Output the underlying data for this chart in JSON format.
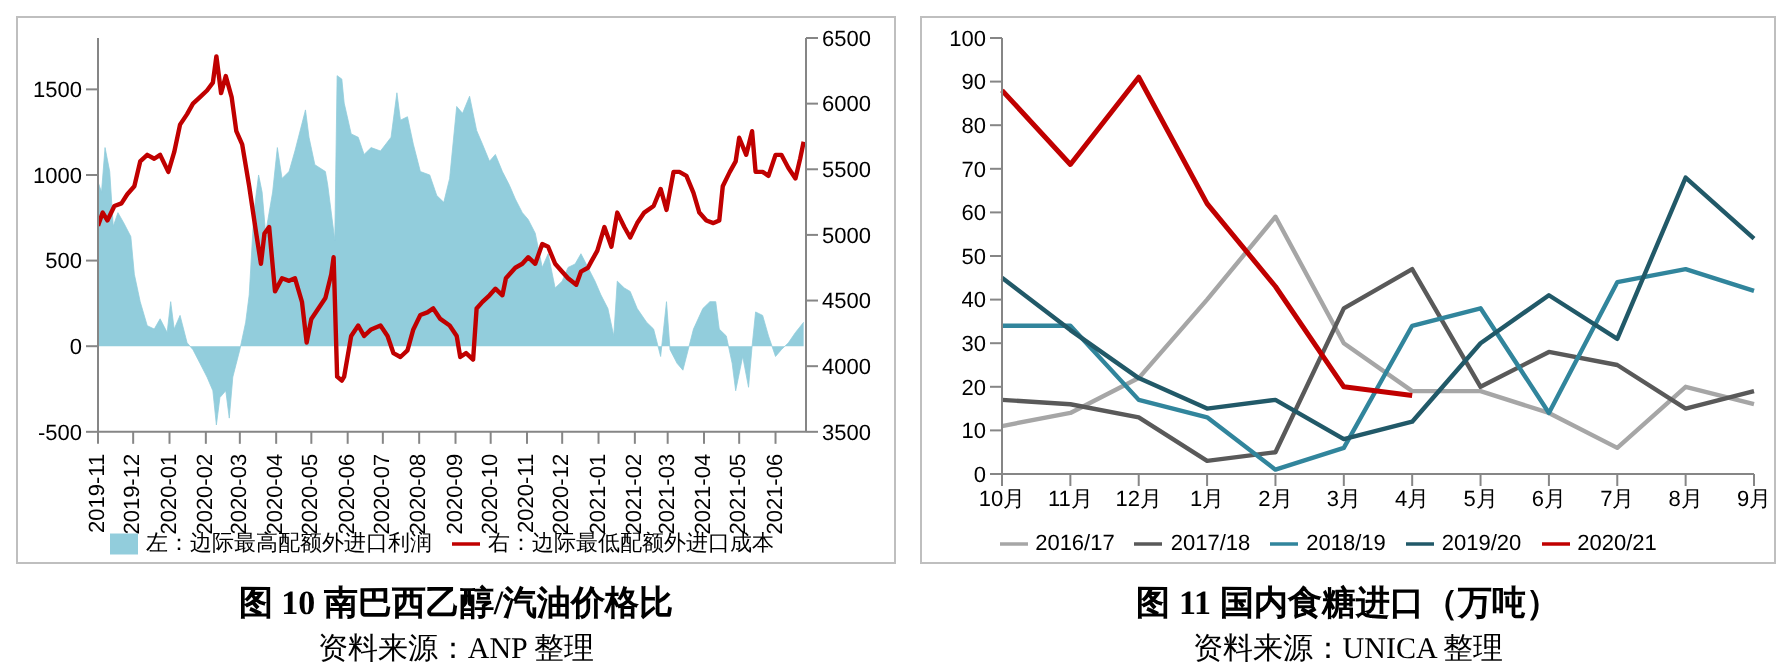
{
  "chart_data": [
    {
      "type": "area",
      "title": "图 10 南巴西乙醇/汽油价格比",
      "annotations": [
        "资料来源：ANP 整理"
      ],
      "xlim": [
        "2019-11-01",
        "2021-06-27"
      ],
      "xticks": [
        "2019-11",
        "2019-12",
        "2020-01",
        "2020-02",
        "2020-03",
        "2020-04",
        "2020-05",
        "2020-06",
        "2020-07",
        "2020-08",
        "2020-09",
        "2020-10",
        "2020-11",
        "2020-12",
        "2021-01",
        "2021-02",
        "2021-03",
        "2021-04",
        "2021-05",
        "2021-06"
      ],
      "ylim": [
        -500,
        1800
      ],
      "yticks": [
        -500,
        0,
        500,
        1000,
        1500
      ],
      "y2lim": [
        3500,
        6500
      ],
      "y2ticks": [
        3500,
        4000,
        4500,
        5000,
        5500,
        6000,
        6500
      ],
      "legend": "bottom",
      "series": [
        {
          "name": "左：边际最高配额外进口利润",
          "color": "#92cddc",
          "x": [
            "2019-11-01",
            "2019-11-04",
            "2019-11-07",
            "2019-11-11",
            "2019-11-14",
            "2019-11-18",
            "2019-11-23",
            "2019-11-29",
            "2019-12-02",
            "2019-12-07",
            "2019-12-13",
            "2019-12-19",
            "2019-12-24",
            "2019-12-30",
            "2020-01-02",
            "2020-01-05",
            "2020-01-10",
            "2020-01-16",
            "2020-01-21",
            "2020-01-27",
            "2020-02-02",
            "2020-02-07",
            "2020-02-10",
            "2020-02-13",
            "2020-02-18",
            "2020-02-21",
            "2020-02-24",
            "2020-03-01",
            "2020-03-06",
            "2020-03-09",
            "2020-03-13",
            "2020-03-17",
            "2020-03-20",
            "2020-03-23",
            "2020-03-29",
            "2020-04-02",
            "2020-04-06",
            "2020-04-12",
            "2020-04-17",
            "2020-04-26",
            "2020-04-29",
            "2020-05-04",
            "2020-05-13",
            "2020-05-15",
            "2020-05-21",
            "2020-05-23",
            "2020-05-27",
            "2020-05-29",
            "2020-06-04",
            "2020-06-10",
            "2020-06-15",
            "2020-06-21",
            "2020-06-29",
            "2020-07-08",
            "2020-07-13",
            "2020-07-16",
            "2020-07-22",
            "2020-07-27",
            "2020-08-02",
            "2020-08-10",
            "2020-08-16",
            "2020-08-22",
            "2020-08-27",
            "2020-09-02",
            "2020-09-07",
            "2020-09-13",
            "2020-09-19",
            "2020-09-24",
            "2020-09-30",
            "2020-10-05",
            "2020-10-11",
            "2020-10-17",
            "2020-10-22",
            "2020-10-28",
            "2020-11-02",
            "2020-11-08",
            "2020-11-14",
            "2020-11-19",
            "2020-11-25",
            "2020-12-01",
            "2020-12-06",
            "2020-12-12",
            "2020-12-17",
            "2020-12-23",
            "2020-12-29",
            "2021-01-03",
            "2021-01-09",
            "2021-01-14",
            "2021-01-17",
            "2021-01-23",
            "2021-01-28",
            "2021-02-03",
            "2021-02-11",
            "2021-02-17",
            "2021-02-23",
            "2021-02-28",
            "2021-03-03",
            "2021-03-09",
            "2021-03-14",
            "2021-03-23",
            "2021-03-31",
            "2021-04-06",
            "2021-04-11",
            "2021-04-14",
            "2021-04-20",
            "2021-04-25",
            "2021-04-28",
            "2021-05-04",
            "2021-05-09",
            "2021-05-12",
            "2021-05-15",
            "2021-05-21",
            "2021-05-26",
            "2021-06-01",
            "2021-06-06",
            "2021-06-12",
            "2021-06-18",
            "2021-06-25"
          ],
          "values": [
            960,
            900,
            1160,
            1020,
            700,
            780,
            720,
            640,
            420,
            260,
            120,
            100,
            160,
            80,
            260,
            100,
            180,
            20,
            -20,
            -100,
            -180,
            -260,
            -460,
            -300,
            -260,
            -420,
            -180,
            -20,
            140,
            300,
            780,
            1000,
            900,
            660,
            900,
            1160,
            980,
            1020,
            1140,
            1380,
            1220,
            1060,
            1020,
            940,
            620,
            1580,
            1560,
            1420,
            1240,
            1220,
            1120,
            1160,
            1140,
            1220,
            1480,
            1320,
            1340,
            1180,
            1020,
            1000,
            880,
            840,
            980,
            1400,
            1360,
            1460,
            1260,
            1180,
            1080,
            1120,
            1020,
            940,
            860,
            780,
            740,
            660,
            460,
            540,
            340,
            380,
            460,
            480,
            540,
            460,
            380,
            300,
            220,
            60,
            380,
            340,
            320,
            220,
            140,
            100,
            -60,
            260,
            -20,
            -100,
            -140,
            100,
            220,
            260,
            260,
            100,
            60,
            -100,
            -260,
            -60,
            -240,
            0,
            200,
            180,
            60,
            -60,
            -20,
            20,
            80,
            140
          ]
        },
        {
          "name": "右：边际最低配额外进口成本",
          "type": "line",
          "axis": "y2",
          "color": "#c00000",
          "x": [
            "2019-11-01",
            "2019-11-05",
            "2019-11-09",
            "2019-11-15",
            "2019-11-21",
            "2019-11-26",
            "2019-12-02",
            "2019-12-07",
            "2019-12-13",
            "2019-12-19",
            "2019-12-24",
            "2019-12-31",
            "2020-01-05",
            "2020-01-10",
            "2020-01-16",
            "2020-01-21",
            "2020-01-27",
            "2020-02-02",
            "2020-02-07",
            "2020-02-10",
            "2020-02-14",
            "2020-02-18",
            "2020-02-23",
            "2020-02-27",
            "2020-03-03",
            "2020-03-09",
            "2020-03-15",
            "2020-03-19",
            "2020-03-22",
            "2020-03-26",
            "2020-03-31",
            "2020-04-06",
            "2020-04-12",
            "2020-04-17",
            "2020-04-23",
            "2020-04-27",
            "2020-05-01",
            "2020-05-07",
            "2020-05-13",
            "2020-05-18",
            "2020-05-20",
            "2020-05-23",
            "2020-05-27",
            "2020-05-29",
            "2020-06-04",
            "2020-06-10",
            "2020-06-15",
            "2020-06-21",
            "2020-06-29",
            "2020-07-05",
            "2020-07-10",
            "2020-07-16",
            "2020-07-22",
            "2020-07-27",
            "2020-08-02",
            "2020-08-08",
            "2020-08-13",
            "2020-08-19",
            "2020-08-27",
            "2020-09-02",
            "2020-09-05",
            "2020-09-10",
            "2020-09-16",
            "2020-09-19",
            "2020-09-24",
            "2020-09-30",
            "2020-10-05",
            "2020-10-11",
            "2020-10-14",
            "2020-10-22",
            "2020-10-28",
            "2020-11-02",
            "2020-11-08",
            "2020-11-14",
            "2020-11-19",
            "2020-11-25",
            "2020-12-01",
            "2020-12-06",
            "2020-12-13",
            "2020-12-17",
            "2020-12-23",
            "2020-12-26",
            "2020-12-31",
            "2021-01-06",
            "2021-01-12",
            "2021-01-17",
            "2021-01-23",
            "2021-01-28",
            "2021-02-03",
            "2021-02-09",
            "2021-02-17",
            "2021-02-23",
            "2021-02-28",
            "2021-03-06",
            "2021-03-11",
            "2021-03-17",
            "2021-03-23",
            "2021-03-28",
            "2021-04-03",
            "2021-04-09",
            "2021-04-14",
            "2021-04-17",
            "2021-04-23",
            "2021-04-28",
            "2021-05-01",
            "2021-05-07",
            "2021-05-12",
            "2021-05-15",
            "2021-05-21",
            "2021-05-26",
            "2021-06-01",
            "2021-06-06",
            "2021-06-12",
            "2021-06-18",
            "2021-06-22",
            "2021-06-25"
          ],
          "values": [
            5070,
            5170,
            5110,
            5220,
            5240,
            5310,
            5370,
            5560,
            5610,
            5580,
            5610,
            5480,
            5630,
            5840,
            5920,
            6000,
            6050,
            6100,
            6160,
            6360,
            6080,
            6210,
            6050,
            5790,
            5690,
            5370,
            5010,
            4780,
            5010,
            5060,
            4570,
            4670,
            4650,
            4670,
            4490,
            4180,
            4360,
            4440,
            4520,
            4700,
            4830,
            3920,
            3890,
            3920,
            4230,
            4310,
            4230,
            4280,
            4310,
            4230,
            4100,
            4070,
            4120,
            4280,
            4390,
            4410,
            4440,
            4360,
            4310,
            4230,
            4070,
            4100,
            4050,
            4440,
            4490,
            4540,
            4590,
            4540,
            4670,
            4750,
            4780,
            4830,
            4780,
            4930,
            4910,
            4780,
            4720,
            4670,
            4620,
            4720,
            4750,
            4800,
            4880,
            5060,
            4910,
            5170,
            5060,
            4980,
            5090,
            5170,
            5220,
            5350,
            5190,
            5480,
            5480,
            5450,
            5320,
            5170,
            5110,
            5090,
            5110,
            5370,
            5480,
            5560,
            5740,
            5610,
            5790,
            5480,
            5480,
            5450,
            5610,
            5610,
            5510,
            5430,
            5580,
            5710
          ]
        }
      ]
    },
    {
      "type": "line",
      "title": "图 11 国内食糖进口（万吨）",
      "annotations": [
        "资料来源：UNICA 整理"
      ],
      "categories": [
        "10月",
        "11月",
        "12月",
        "1月",
        "2月",
        "3月",
        "4月",
        "5月",
        "6月",
        "7月",
        "8月",
        "9月"
      ],
      "ylim": [
        0,
        100
      ],
      "yticks": [
        0,
        10,
        20,
        30,
        40,
        50,
        60,
        70,
        80,
        90,
        100
      ],
      "legend": "bottom",
      "series": [
        {
          "name": "2016/17",
          "color": "#a6a6a6",
          "values": [
            11,
            14,
            22,
            40,
            59,
            30,
            19,
            19,
            14,
            6,
            20,
            16
          ]
        },
        {
          "name": "2017/18",
          "color": "#595959",
          "values": [
            17,
            16,
            13,
            3,
            5,
            38,
            47,
            20,
            28,
            25,
            15,
            19
          ]
        },
        {
          "name": "2018/19",
          "color": "#31859c",
          "values": [
            34,
            34,
            17,
            13,
            1,
            6,
            34,
            38,
            14,
            44,
            47,
            42
          ]
        },
        {
          "name": "2019/20",
          "color": "#215968",
          "values": [
            45,
            33,
            22,
            15,
            17,
            8,
            12,
            30,
            41,
            31,
            68,
            54
          ]
        },
        {
          "name": "2020/21",
          "color": "#c00000",
          "values": [
            88,
            71,
            91,
            62,
            43,
            20,
            18,
            null,
            null,
            null,
            null,
            null
          ]
        }
      ]
    }
  ]
}
